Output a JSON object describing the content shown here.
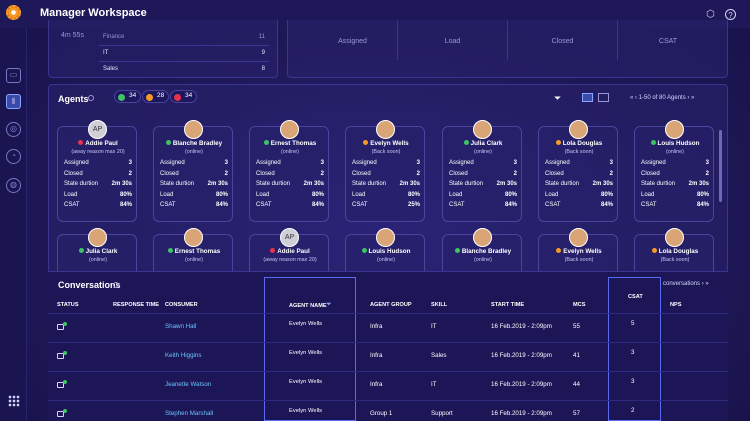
{
  "app": {
    "title": "Manager Workspace"
  },
  "top_stats": {
    "time": "4m 55s",
    "rows": [
      {
        "label": "Finance",
        "value": "11"
      },
      {
        "label": "IT",
        "value": "9"
      },
      {
        "label": "Sales",
        "value": "8"
      }
    ],
    "boxes": [
      "Assigned",
      "Load",
      "Closed",
      "CSAT"
    ]
  },
  "agents_section": {
    "title": "Agents",
    "status_counts": [
      {
        "color": "#3ec463",
        "count": "34"
      },
      {
        "color": "#f59b23",
        "count": "28"
      },
      {
        "color": "#e5334b",
        "count": "34"
      }
    ],
    "pager": "1-50 of 80 Agents"
  },
  "agents": [
    {
      "name": "Addie Paul",
      "status": "(away reason max 20)",
      "dot": "#e5334b",
      "initials": "AP",
      "assigned": "3",
      "closed": "2",
      "duration": "2m 30s",
      "load": "80%",
      "csat": "84%"
    },
    {
      "name": "Blanche Bradley",
      "status": "(online)",
      "dot": "#3ec463",
      "initials": "",
      "assigned": "3",
      "closed": "2",
      "duration": "2m 30s",
      "load": "80%",
      "csat": "84%"
    },
    {
      "name": "Ernest Thomas",
      "status": "(online)",
      "dot": "#3ec463",
      "initials": "",
      "assigned": "3",
      "closed": "2",
      "duration": "2m 30s",
      "load": "80%",
      "csat": "84%"
    },
    {
      "name": "Evelyn Wells",
      "status": "(Back soon)",
      "dot": "#f59b23",
      "initials": "",
      "assigned": "3",
      "closed": "2",
      "duration": "2m 30s",
      "load": "80%",
      "csat": "25%"
    },
    {
      "name": "Julia Clark",
      "status": "(online)",
      "dot": "#3ec463",
      "initials": "",
      "assigned": "3",
      "closed": "2",
      "duration": "2m 30s",
      "load": "80%",
      "csat": "84%"
    },
    {
      "name": "Lola Douglas",
      "status": "(Back soon)",
      "dot": "#f59b23",
      "initials": "",
      "assigned": "3",
      "closed": "2",
      "duration": "2m 30s",
      "load": "80%",
      "csat": "84%"
    },
    {
      "name": "Louis Hudson",
      "status": "(online)",
      "dot": "#3ec463",
      "initials": "",
      "assigned": "3",
      "closed": "2",
      "duration": "2m 30s",
      "load": "80%",
      "csat": "84%"
    }
  ],
  "agents_row2": [
    {
      "name": "Julia Clark",
      "status": "(online)",
      "dot": "#3ec463",
      "initials": ""
    },
    {
      "name": "Ernest Thomas",
      "status": "(online)",
      "dot": "#3ec463",
      "initials": ""
    },
    {
      "name": "Addie Paul",
      "status": "(away reason max 20)",
      "dot": "#e5334b",
      "initials": "AP"
    },
    {
      "name": "Louis Hudson",
      "status": "(online)",
      "dot": "#3ec463",
      "initials": ""
    },
    {
      "name": "Blanche Bradley",
      "status": "(online)",
      "dot": "#3ec463",
      "initials": ""
    },
    {
      "name": "Evelyn Wells",
      "status": "(Back soon)",
      "dot": "#f59b23",
      "initials": ""
    },
    {
      "name": "Lola Douglas",
      "status": "(Back soon)",
      "dot": "#f59b23",
      "initials": ""
    }
  ],
  "stat_labels": {
    "assigned": "Assigned",
    "closed": "Closed",
    "duration": "State durtion",
    "load": "Load",
    "csat": "CSAT"
  },
  "conversations": {
    "title": "Conversations",
    "pager": "conversations",
    "columns": {
      "status": "STATUS",
      "response": "RESPONSE TIME",
      "consumer": "CONSUMER",
      "agent": "AGENT NAME",
      "group": "AGENT GROUP",
      "skill": "SKILL",
      "start": "START TIME",
      "mcs": "MCS",
      "csat": "CSAT",
      "nps": "NPS"
    },
    "rows": [
      {
        "consumer": "Shawn Hall",
        "agent": "Evelyn Wells",
        "group": "Infra",
        "skill": "IT",
        "start": "16 Feb.2019 - 2:09pm",
        "mcs": "55",
        "csat": "5",
        "dot": "#3ec463"
      },
      {
        "consumer": "Keith Higgins",
        "agent": "Evelyn Wells",
        "group": "Infra",
        "skill": "Sales",
        "start": "16 Feb.2019 - 2:09pm",
        "mcs": "41",
        "csat": "3",
        "dot": "#3ec463"
      },
      {
        "consumer": "Jeanette Watson",
        "agent": "Evelyn Wells",
        "group": "Infra",
        "skill": "IT",
        "start": "16 Feb.2019 - 2:09pm",
        "mcs": "44",
        "csat": "3",
        "dot": "#3ec463"
      },
      {
        "consumer": "Stephen Marshall",
        "agent": "Evelyn Wells",
        "group": "Group 1",
        "skill": "Support",
        "start": "16 Feb.2019 - 2:09pm",
        "mcs": "57",
        "csat": "2",
        "dot": "#3ec463"
      }
    ]
  },
  "icons": [
    "box-icon",
    "help-icon",
    "chat-icon",
    "chart-icon",
    "agent-icon",
    "clock-icon",
    "globe-icon",
    "filter-icon",
    "card-view-icon",
    "table-view-icon"
  ]
}
